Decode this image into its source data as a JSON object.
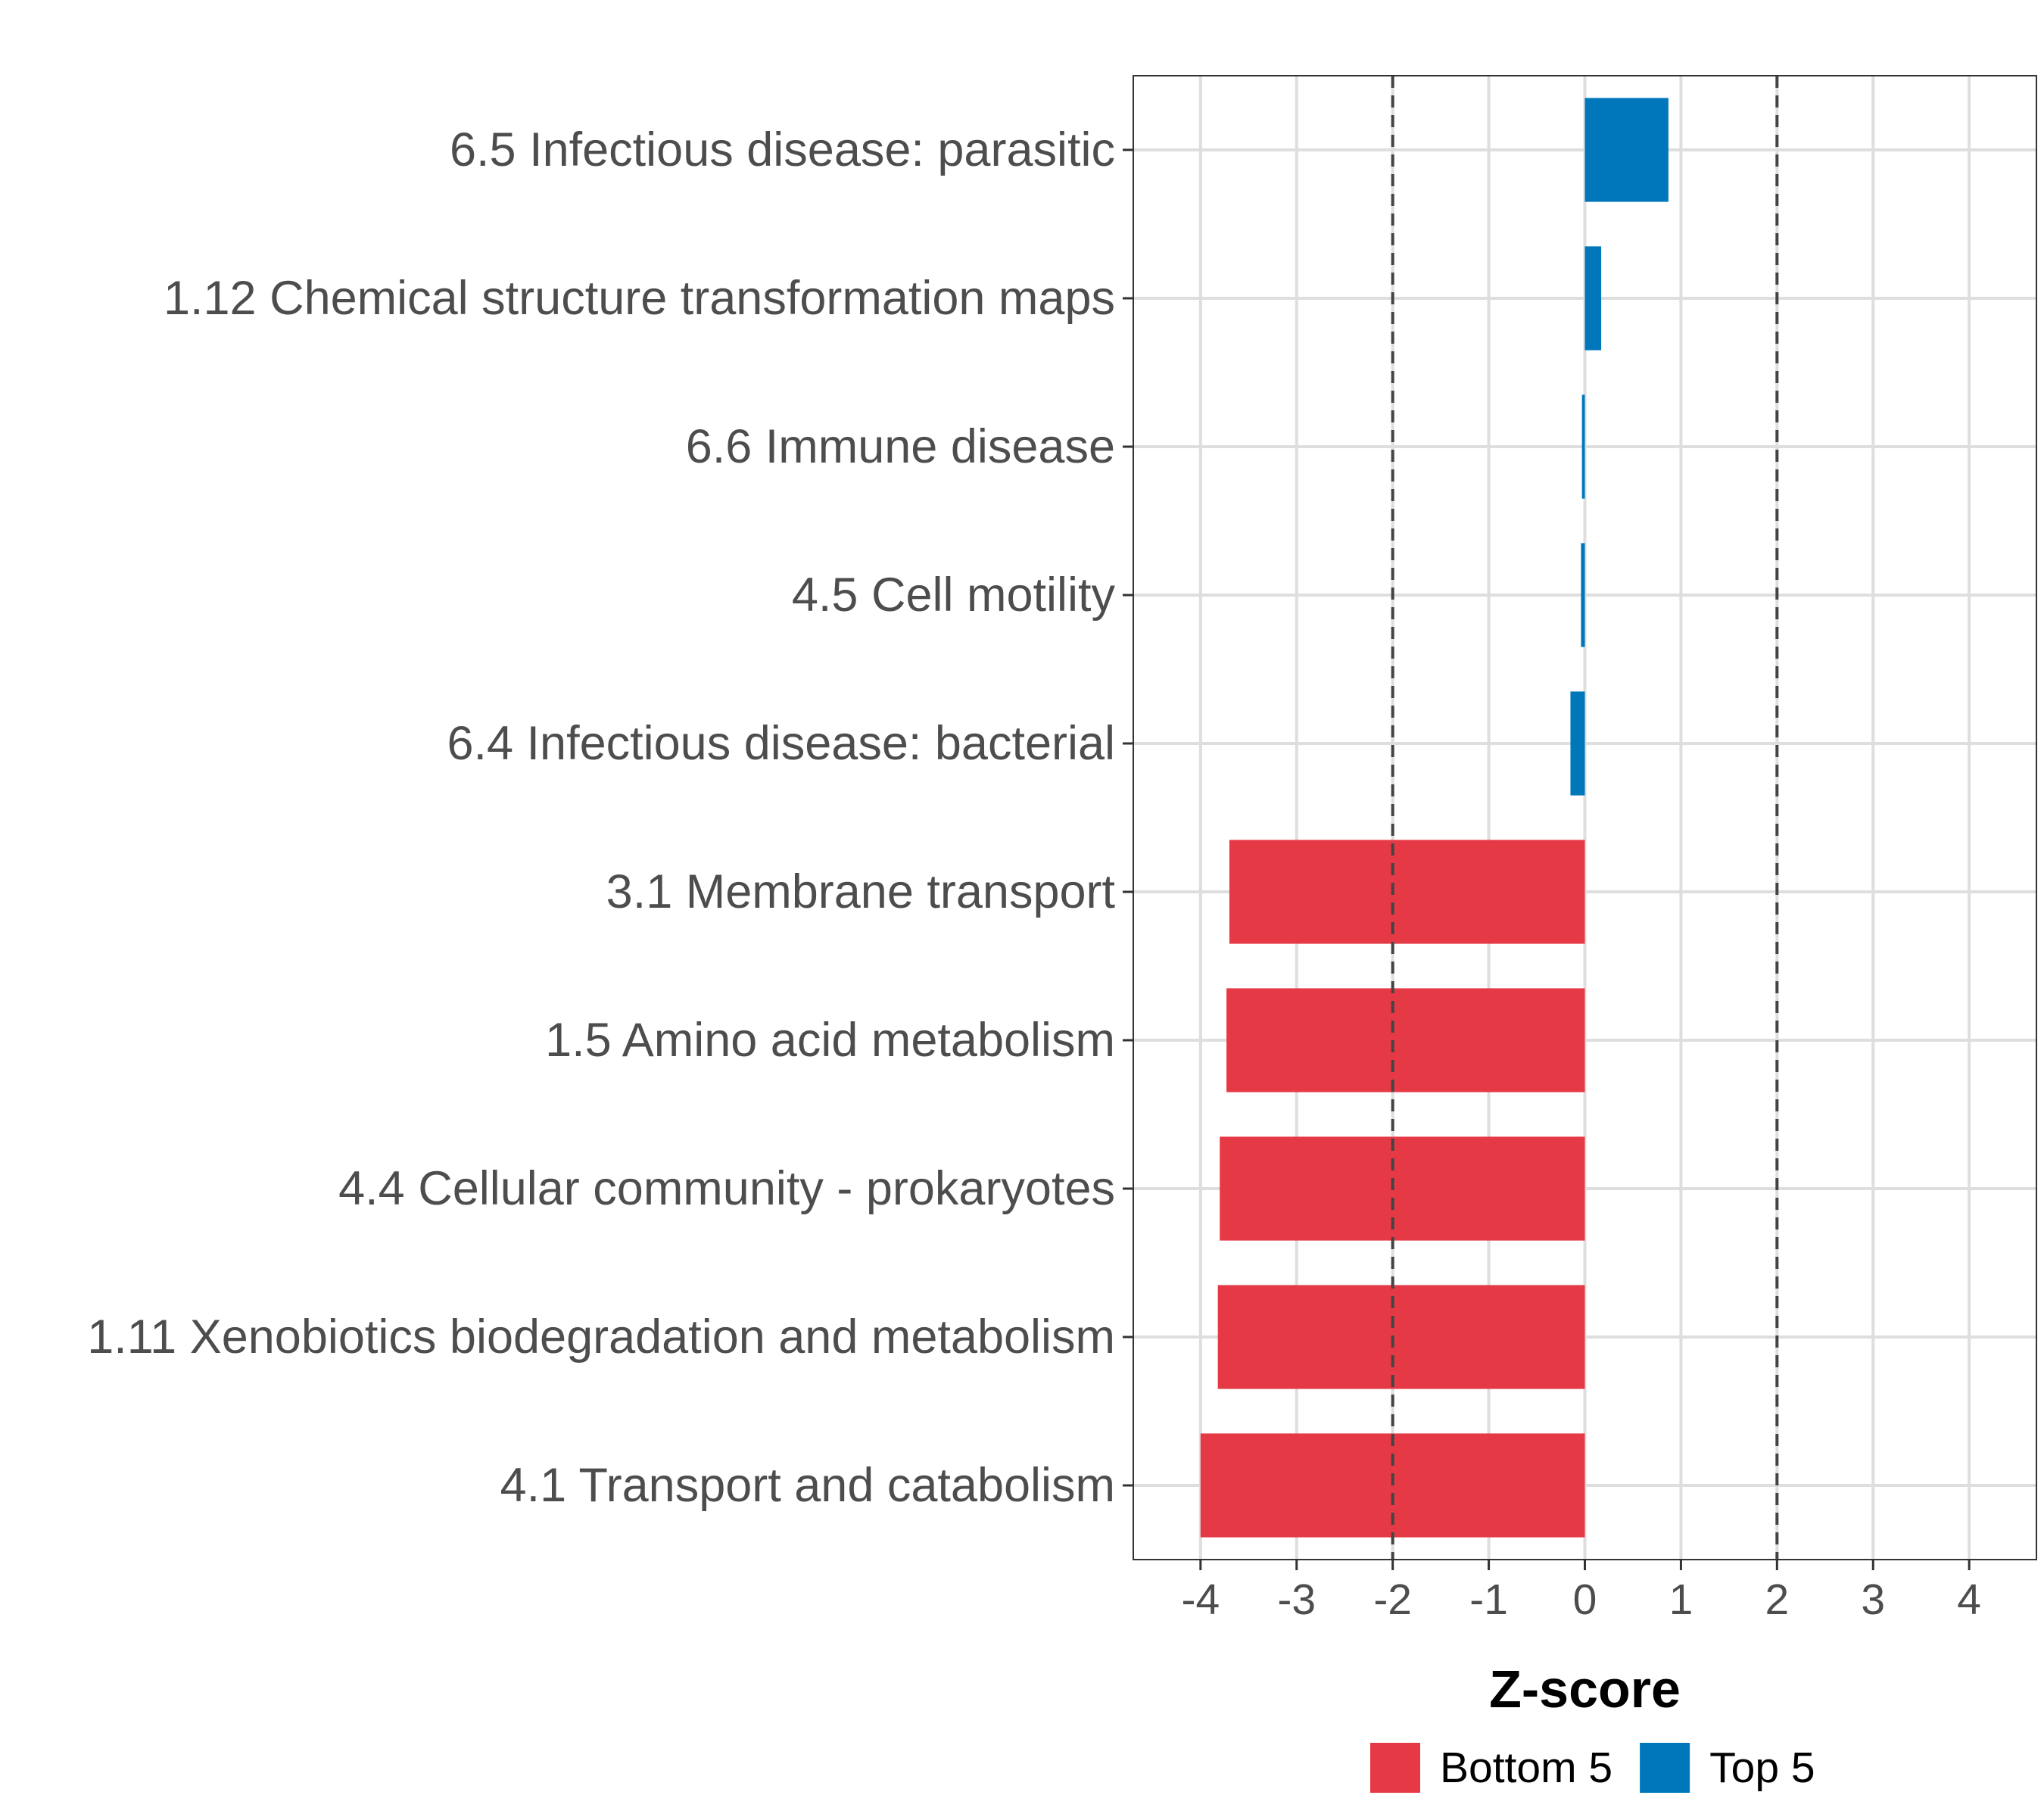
{
  "chart_data": {
    "type": "bar",
    "orientation": "horizontal",
    "title": "",
    "xlabel": "Z-score",
    "ylabel": "",
    "xlim": [
      -4.7,
      4.7
    ],
    "x_ticks": [
      -4,
      -3,
      -2,
      -1,
      0,
      1,
      2,
      3,
      4
    ],
    "x_tick_labels": [
      "-4",
      "-3",
      "-2",
      "-1",
      "0",
      "1",
      "2",
      "3",
      "4"
    ],
    "reference_lines": [
      -2,
      2
    ],
    "grid": true,
    "categories": [
      "6.5 Infectious disease: parasitic",
      "1.12 Chemical structure transformation maps",
      "6.6 Immune disease",
      "4.5 Cell motility",
      "6.4 Infectious disease: bacterial",
      "3.1 Membrane transport",
      "1.5 Amino acid metabolism",
      "4.4 Cellular community - prokaryotes",
      "1.11 Xenobiotics biodegradation and metabolism",
      "4.1 Transport and catabolism"
    ],
    "values": [
      0.87,
      0.17,
      -0.03,
      -0.04,
      -0.15,
      -3.7,
      -3.73,
      -3.8,
      -3.82,
      -4.0
    ],
    "groups": [
      "Top 5",
      "Top 5",
      "Top 5",
      "Top 5",
      "Top 5",
      "Bottom 5",
      "Bottom 5",
      "Bottom 5",
      "Bottom 5",
      "Bottom 5"
    ],
    "legend": {
      "position": "bottom",
      "items": [
        {
          "label": "Bottom 5",
          "color": "#E63946"
        },
        {
          "label": "Top 5",
          "color": "#0077BB"
        }
      ]
    }
  }
}
